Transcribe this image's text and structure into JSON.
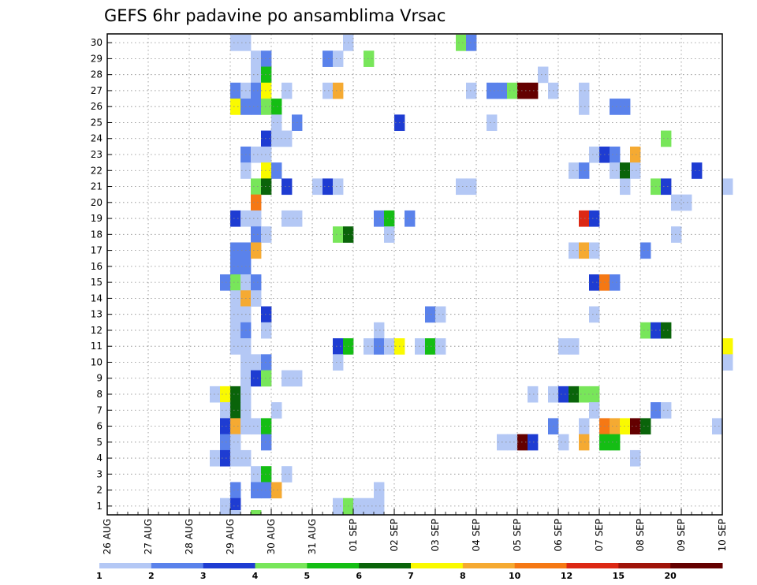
{
  "chart_data": {
    "type": "heatmap",
    "title": "GEFS 6hr padavine po ansamblima Vrsac",
    "xlabel": "",
    "ylabel": "",
    "x_range": [
      "26 AUG 00Z",
      "10 SEP 00Z"
    ],
    "x_step_hours": 6,
    "x_ticks": [
      "26 AUG",
      "27 AUG",
      "28 AUG",
      "29 AUG",
      "30 AUG",
      "31 AUG",
      "01 SEP",
      "02 SEP",
      "03 SEP",
      "04 SEP",
      "05 SEP",
      "06 SEP",
      "07 SEP",
      "08 SEP",
      "09 SEP",
      "10 SEP"
    ],
    "y_ticks": [
      1,
      2,
      3,
      4,
      5,
      6,
      7,
      8,
      9,
      10,
      11,
      12,
      13,
      14,
      15,
      16,
      17,
      18,
      19,
      20,
      21,
      22,
      23,
      24,
      25,
      26,
      27,
      28,
      29,
      30
    ],
    "grid": true,
    "legend_position": "bottom",
    "colorbar": {
      "labels": [
        "1",
        "2",
        "3",
        "4",
        "5",
        "6",
        "7",
        "8",
        "10",
        "12",
        "15",
        "20"
      ],
      "colors": [
        "#b4c8f5",
        "#5a82eb",
        "#1e3cd2",
        "#78e65a",
        "#14be14",
        "#0a640a",
        "#fafa00",
        "#f5aa32",
        "#f57814",
        "#dc2814",
        "#a0140a",
        "#640000"
      ]
    },
    "cells": [
      [
        30,
        12,
        1
      ],
      [
        30,
        13,
        1
      ],
      [
        30,
        23,
        1
      ],
      [
        30,
        34,
        4
      ],
      [
        30,
        35,
        2
      ],
      [
        29,
        14,
        1
      ],
      [
        29,
        15,
        2
      ],
      [
        29,
        21,
        2
      ],
      [
        29,
        22,
        1
      ],
      [
        29,
        25,
        4
      ],
      [
        28,
        14,
        1
      ],
      [
        28,
        15,
        5
      ],
      [
        28,
        42,
        1
      ],
      [
        27,
        12,
        2
      ],
      [
        27,
        13,
        1
      ],
      [
        27,
        14,
        2
      ],
      [
        27,
        15,
        7
      ],
      [
        27,
        17,
        1
      ],
      [
        27,
        21,
        1
      ],
      [
        27,
        22,
        8
      ],
      [
        27,
        35,
        1
      ],
      [
        27,
        37,
        2
      ],
      [
        27,
        38,
        2
      ],
      [
        27,
        39,
        4
      ],
      [
        27,
        40,
        12
      ],
      [
        27,
        41,
        12
      ],
      [
        27,
        43,
        1
      ],
      [
        27,
        46,
        1
      ],
      [
        26,
        12,
        7
      ],
      [
        26,
        13,
        2
      ],
      [
        26,
        14,
        2
      ],
      [
        26,
        15,
        4
      ],
      [
        26,
        16,
        5
      ],
      [
        26,
        46,
        1
      ],
      [
        26,
        49,
        2
      ],
      [
        26,
        50,
        2
      ],
      [
        25,
        16,
        1
      ],
      [
        25,
        18,
        2
      ],
      [
        25,
        28,
        3
      ],
      [
        25,
        37,
        1
      ],
      [
        24,
        15,
        3
      ],
      [
        24,
        16,
        1
      ],
      [
        24,
        17,
        1
      ],
      [
        24,
        54,
        4
      ],
      [
        23,
        13,
        2
      ],
      [
        23,
        14,
        1
      ],
      [
        23,
        15,
        1
      ],
      [
        23,
        47,
        1
      ],
      [
        23,
        48,
        3
      ],
      [
        23,
        49,
        2
      ],
      [
        23,
        51,
        8
      ],
      [
        22,
        13,
        1
      ],
      [
        22,
        15,
        7
      ],
      [
        22,
        16,
        2
      ],
      [
        22,
        45,
        1
      ],
      [
        22,
        46,
        2
      ],
      [
        22,
        49,
        1
      ],
      [
        22,
        50,
        6
      ],
      [
        22,
        51,
        1
      ],
      [
        22,
        57,
        3
      ],
      [
        21,
        14,
        4
      ],
      [
        21,
        15,
        6
      ],
      [
        21,
        17,
        3
      ],
      [
        21,
        20,
        1
      ],
      [
        21,
        21,
        3
      ],
      [
        21,
        22,
        1
      ],
      [
        21,
        34,
        1
      ],
      [
        21,
        35,
        1
      ],
      [
        21,
        50,
        1
      ],
      [
        21,
        53,
        4
      ],
      [
        21,
        54,
        3
      ],
      [
        21,
        60,
        1
      ],
      [
        20,
        14,
        9
      ],
      [
        20,
        55,
        1
      ],
      [
        20,
        56,
        1
      ],
      [
        19,
        12,
        3
      ],
      [
        19,
        13,
        1
      ],
      [
        19,
        14,
        1
      ],
      [
        19,
        17,
        1
      ],
      [
        19,
        18,
        1
      ],
      [
        19,
        26,
        2
      ],
      [
        19,
        27,
        5
      ],
      [
        19,
        29,
        2
      ],
      [
        19,
        46,
        10
      ],
      [
        19,
        47,
        3
      ],
      [
        18,
        14,
        2
      ],
      [
        18,
        15,
        1
      ],
      [
        18,
        22,
        4
      ],
      [
        18,
        23,
        6
      ],
      [
        18,
        27,
        1
      ],
      [
        18,
        55,
        1
      ],
      [
        17,
        12,
        2
      ],
      [
        17,
        13,
        2
      ],
      [
        17,
        14,
        8
      ],
      [
        17,
        45,
        1
      ],
      [
        17,
        46,
        8
      ],
      [
        17,
        47,
        1
      ],
      [
        17,
        52,
        2
      ],
      [
        16,
        12,
        2
      ],
      [
        16,
        13,
        2
      ],
      [
        15,
        11,
        2
      ],
      [
        15,
        12,
        4
      ],
      [
        15,
        13,
        1
      ],
      [
        15,
        14,
        2
      ],
      [
        15,
        47,
        3
      ],
      [
        15,
        48,
        9
      ],
      [
        15,
        49,
        2
      ],
      [
        14,
        12,
        1
      ],
      [
        14,
        13,
        8
      ],
      [
        14,
        14,
        1
      ],
      [
        13,
        12,
        1
      ],
      [
        13,
        13,
        1
      ],
      [
        13,
        15,
        3
      ],
      [
        13,
        31,
        2
      ],
      [
        13,
        32,
        1
      ],
      [
        13,
        47,
        1
      ],
      [
        12,
        12,
        1
      ],
      [
        12,
        13,
        2
      ],
      [
        12,
        15,
        1
      ],
      [
        12,
        26,
        1
      ],
      [
        12,
        52,
        4
      ],
      [
        12,
        53,
        3
      ],
      [
        12,
        54,
        6
      ],
      [
        11,
        12,
        1
      ],
      [
        11,
        13,
        1
      ],
      [
        11,
        22,
        3
      ],
      [
        11,
        23,
        5
      ],
      [
        11,
        25,
        1
      ],
      [
        11,
        26,
        2
      ],
      [
        11,
        27,
        1
      ],
      [
        11,
        28,
        7
      ],
      [
        11,
        30,
        1
      ],
      [
        11,
        31,
        5
      ],
      [
        11,
        32,
        1
      ],
      [
        11,
        44,
        1
      ],
      [
        11,
        45,
        1
      ],
      [
        11,
        60,
        7
      ],
      [
        10,
        13,
        1
      ],
      [
        10,
        14,
        1
      ],
      [
        10,
        15,
        2
      ],
      [
        10,
        22,
        1
      ],
      [
        10,
        60,
        1
      ],
      [
        9,
        13,
        1
      ],
      [
        9,
        14,
        3
      ],
      [
        9,
        15,
        4
      ],
      [
        9,
        17,
        1
      ],
      [
        9,
        18,
        1
      ],
      [
        8,
        10,
        1
      ],
      [
        8,
        11,
        7
      ],
      [
        8,
        12,
        6
      ],
      [
        8,
        13,
        1
      ],
      [
        8,
        41,
        1
      ],
      [
        8,
        43,
        1
      ],
      [
        8,
        44,
        3
      ],
      [
        8,
        45,
        6
      ],
      [
        8,
        46,
        4
      ],
      [
        8,
        47,
        4
      ],
      [
        7,
        11,
        1
      ],
      [
        7,
        12,
        6
      ],
      [
        7,
        13,
        1
      ],
      [
        7,
        16,
        1
      ],
      [
        7,
        47,
        1
      ],
      [
        7,
        53,
        2
      ],
      [
        7,
        54,
        1
      ],
      [
        6,
        11,
        3
      ],
      [
        6,
        12,
        8
      ],
      [
        6,
        13,
        1
      ],
      [
        6,
        14,
        1
      ],
      [
        6,
        15,
        5
      ],
      [
        6,
        43,
        2
      ],
      [
        6,
        46,
        1
      ],
      [
        6,
        48,
        9
      ],
      [
        6,
        49,
        8
      ],
      [
        6,
        50,
        7
      ],
      [
        6,
        51,
        12
      ],
      [
        6,
        52,
        6
      ],
      [
        6,
        59,
        1
      ],
      [
        5,
        11,
        2
      ],
      [
        5,
        12,
        1
      ],
      [
        5,
        15,
        2
      ],
      [
        5,
        38,
        1
      ],
      [
        5,
        39,
        1
      ],
      [
        5,
        40,
        12
      ],
      [
        5,
        41,
        3
      ],
      [
        5,
        44,
        1
      ],
      [
        5,
        46,
        8
      ],
      [
        5,
        48,
        5
      ],
      [
        5,
        49,
        5
      ],
      [
        4,
        10,
        1
      ],
      [
        4,
        11,
        3
      ],
      [
        4,
        12,
        1
      ],
      [
        4,
        13,
        1
      ],
      [
        4,
        51,
        1
      ],
      [
        3,
        14,
        1
      ],
      [
        3,
        15,
        5
      ],
      [
        3,
        17,
        1
      ],
      [
        2,
        12,
        2
      ],
      [
        2,
        14,
        2
      ],
      [
        2,
        15,
        2
      ],
      [
        2,
        16,
        8
      ],
      [
        2,
        26,
        1
      ],
      [
        1,
        11,
        1
      ],
      [
        1,
        12,
        3
      ],
      [
        1,
        22,
        1
      ],
      [
        1,
        23,
        4
      ],
      [
        1,
        24,
        1
      ],
      [
        1,
        25,
        1
      ],
      [
        1,
        26,
        1
      ],
      [
        0,
        12,
        1
      ],
      [
        0,
        14,
        4
      ]
    ]
  }
}
